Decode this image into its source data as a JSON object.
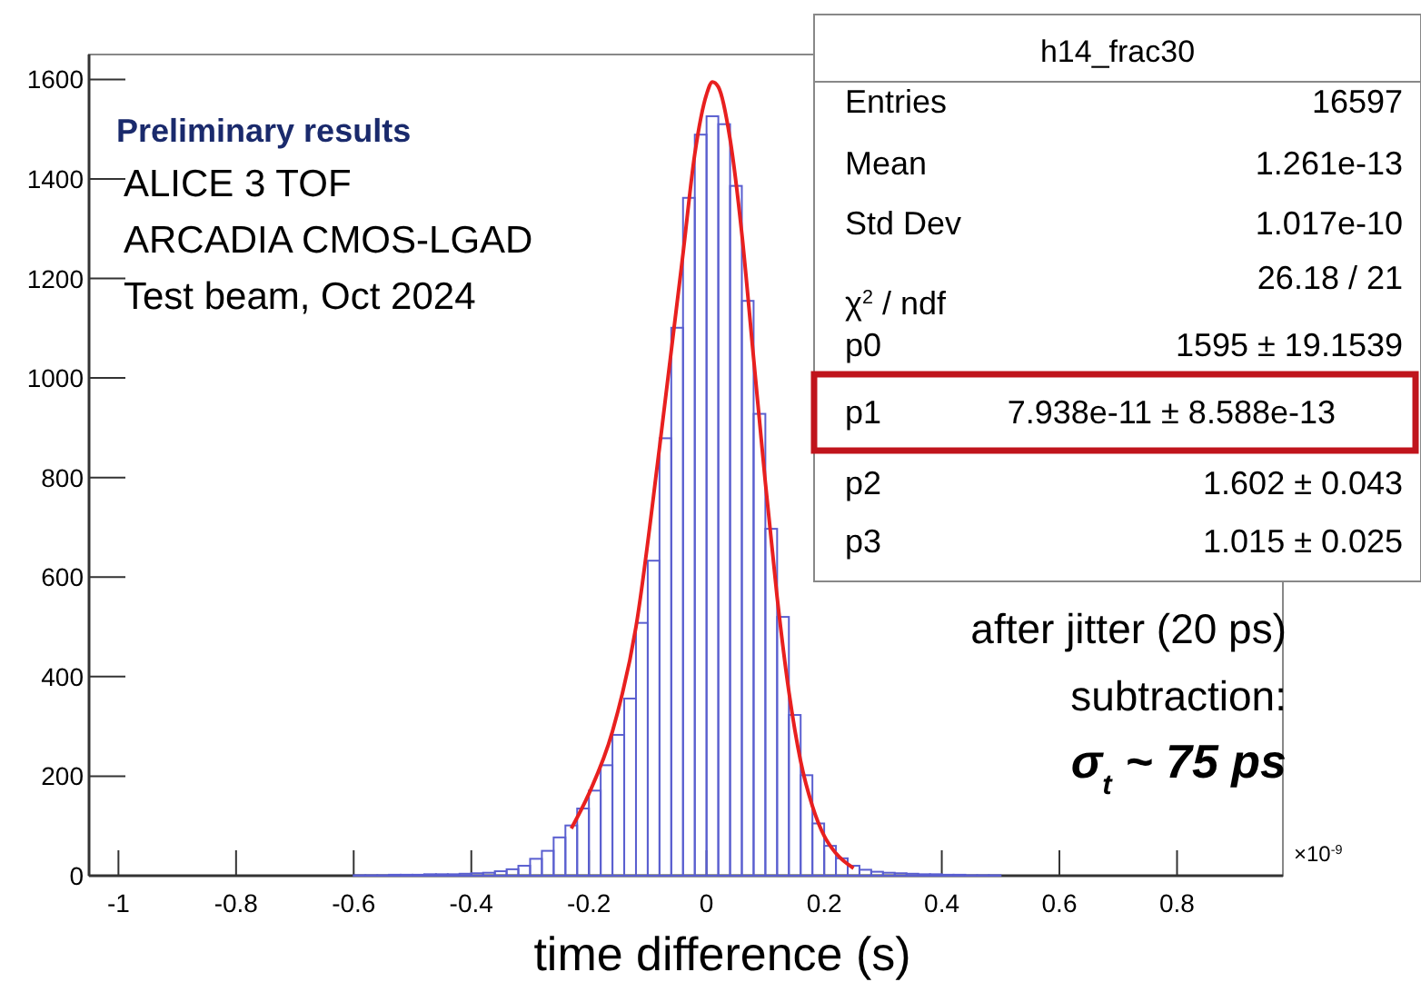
{
  "chart_data": {
    "type": "histogram",
    "xlabel": "time difference (s)",
    "bins": [
      -0.6,
      -0.58,
      -0.56,
      -0.54,
      -0.52,
      -0.5,
      -0.48,
      -0.46,
      -0.44,
      -0.42,
      -0.4,
      -0.38,
      -0.36,
      -0.34,
      -0.32,
      -0.3,
      -0.28,
      -0.26,
      -0.24,
      -0.22,
      -0.2,
      -0.18,
      -0.16,
      -0.14,
      -0.12,
      -0.1,
      -0.08,
      -0.06,
      -0.04,
      -0.02,
      0,
      0.02,
      0.04,
      0.06,
      0.08,
      0.1,
      0.12,
      0.14,
      0.16,
      0.18,
      0.2,
      0.22,
      0.24,
      0.26,
      0.28,
      0.3,
      0.32,
      0.34,
      0.36,
      0.38,
      0.4,
      0.42,
      0.44,
      0.46,
      0.48,
      0.5
    ],
    "values": [
      1,
      1,
      1,
      2,
      2,
      2,
      3,
      3,
      3,
      4,
      5,
      6,
      9,
      13,
      20,
      34,
      50,
      77,
      101,
      135,
      171,
      222,
      283,
      356,
      508,
      633,
      879,
      1101,
      1362,
      1489,
      1526,
      1510,
      1386,
      1155,
      928,
      697,
      520,
      323,
      202,
      105,
      60,
      35,
      20,
      12,
      8,
      6,
      5,
      4,
      3,
      3,
      2,
      2,
      1,
      1,
      1
    ],
    "color": "#5a5fd0",
    "series": [
      {
        "type": "line",
        "color": "#e8201f",
        "x": [
          -0.23,
          -0.2,
          -0.16,
          -0.12,
          -0.08,
          -0.04,
          -0.02,
          0,
          0.01,
          0.02,
          0.04,
          0.06,
          0.08,
          0.1,
          0.12,
          0.14,
          0.16,
          0.18,
          0.2,
          0.22,
          0.25
        ],
        "values": [
          95,
          165,
          290,
          500,
          860,
          1250,
          1450,
          1570,
          1595,
          1585,
          1480,
          1290,
          1040,
          790,
          560,
          370,
          230,
          140,
          80,
          45,
          15
        ]
      }
    ],
    "xlim": [
      -1.05,
      0.98
    ],
    "xticks": [
      -1,
      -0.8,
      -0.6,
      -0.4,
      -0.2,
      0,
      0.2,
      0.4,
      0.6,
      0.8
    ],
    "ylim": [
      0,
      1650
    ],
    "yticks": [
      0,
      200,
      400,
      600,
      800,
      1000,
      1200,
      1400,
      1600
    ],
    "grid": false,
    "annotations": [
      "Preliminary results",
      "ALICE 3 TOF",
      "ARCADIA CMOS-LGAD",
      "Test beam, Oct 2024",
      "h14_frac30",
      "Entries",
      "16597",
      "Mean",
      "1.261e-13",
      "Std Dev",
      "1.017e-10",
      "χ$^{2}$ / ndf",
      "26.18 / 21",
      "p0",
      "1595 ± 19.1539",
      "p1",
      "7.938e-11 ± 8.588e-13",
      "p2",
      "1.602 ± 0.043",
      "p3",
      "1.015 ± 0.025",
      "after jitter (20 ps)",
      "subtraction:",
      "σ$_{t}$ ~ 75 ps",
      "×10$^{-9}$"
    ]
  }
}
